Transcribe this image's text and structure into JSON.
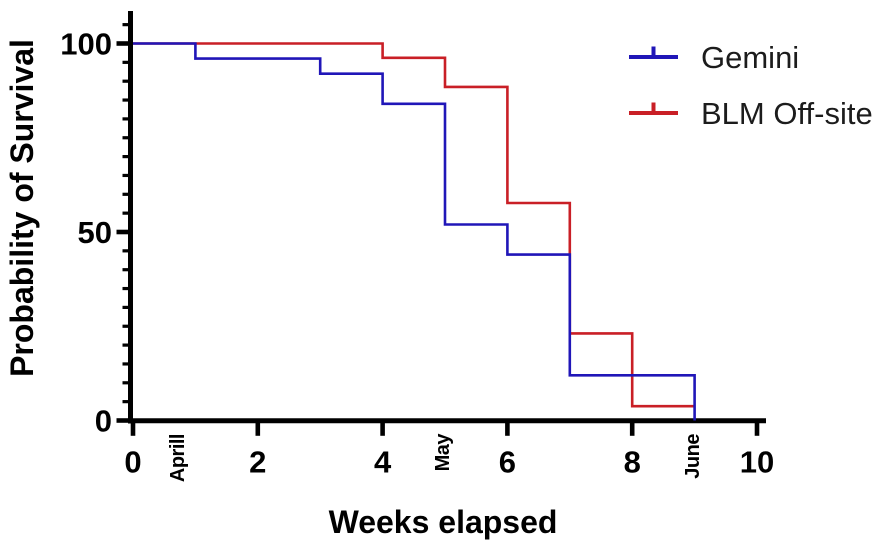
{
  "figure": {
    "background": "#ffffff",
    "axis_color": "#000000",
    "text_color": "#000000"
  },
  "chart_data": {
    "type": "line",
    "subtype": "kaplan-meier-step-survival",
    "title": "",
    "xlabel": "Weeks elapsed",
    "ylabel": "Probability of Survival",
    "xlim": [
      0,
      10
    ],
    "ylim": [
      0,
      105
    ],
    "grid": false,
    "x_major_ticks": [
      0,
      2,
      4,
      6,
      8,
      10
    ],
    "y_major_ticks": [
      0,
      50,
      100
    ],
    "y_minor_tick_step": 5,
    "legend_position": "top-right",
    "month_labels": [
      {
        "label": "Aprill",
        "week": 0.67
      },
      {
        "label": "May",
        "week": 4.91
      },
      {
        "label": "June",
        "week": 8.91
      }
    ],
    "series": [
      {
        "name": "BLM Off-site",
        "color": "#c91f26",
        "steps": [
          [
            0,
            100
          ],
          [
            4,
            100
          ],
          [
            4,
            96.2
          ],
          [
            5,
            96.2
          ],
          [
            5,
            88.5
          ],
          [
            6,
            88.5
          ],
          [
            6,
            57.7
          ],
          [
            7,
            57.7
          ],
          [
            7,
            23.1
          ],
          [
            8,
            23.1
          ],
          [
            8,
            3.8
          ],
          [
            9,
            3.8
          ]
        ]
      },
      {
        "name": "Gemini",
        "color": "#2016b8",
        "steps": [
          [
            0,
            100
          ],
          [
            1,
            100
          ],
          [
            1,
            96
          ],
          [
            3,
            96
          ],
          [
            3,
            92
          ],
          [
            4,
            92
          ],
          [
            4,
            84
          ],
          [
            5,
            84
          ],
          [
            5,
            52
          ],
          [
            6,
            52
          ],
          [
            6,
            44
          ],
          [
            7,
            44
          ],
          [
            7,
            12
          ],
          [
            9,
            12
          ],
          [
            9,
            0
          ]
        ]
      }
    ],
    "legend": [
      {
        "label": "Gemini",
        "color": "#2016b8"
      },
      {
        "label": "BLM Off-site",
        "color": "#c91f26"
      }
    ]
  }
}
